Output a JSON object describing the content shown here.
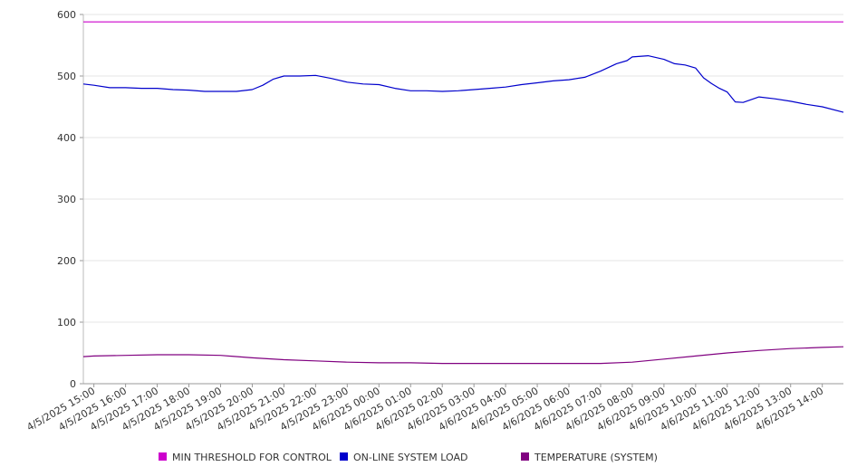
{
  "chart_data": {
    "type": "line",
    "title": "",
    "xlabel": "",
    "ylabel": "",
    "ylim": [
      0,
      600
    ],
    "y_ticks": [
      0,
      100,
      200,
      300,
      400,
      500,
      600
    ],
    "x_start": "4/5/2025 14:40",
    "x_end": "4/6/2025 14:40",
    "x_tick_labels": [
      "4/5/2025 15:00",
      "4/5/2025 16:00",
      "4/5/2025 17:00",
      "4/5/2025 18:00",
      "4/5/2025 19:00",
      "4/5/2025 20:00",
      "4/5/2025 21:00",
      "4/5/2025 22:00",
      "4/5/2025 23:00",
      "4/6/2025 00:00",
      "4/6/2025 01:00",
      "4/6/2025 02:00",
      "4/6/2025 03:00",
      "4/6/2025 04:00",
      "4/6/2025 05:00",
      "4/6/2025 06:00",
      "4/6/2025 07:00",
      "4/6/2025 08:00",
      "4/6/2025 09:00",
      "4/6/2025 10:00",
      "4/6/2025 11:00",
      "4/6/2025 12:00",
      "4/6/2025 13:00",
      "4/6/2025 14:00"
    ],
    "grid": true,
    "legend_position": "bottom",
    "series": [
      {
        "name": "MIN THRESHOLD FOR CONTROL",
        "color": "#cc00cc",
        "x": [
          "4/5/2025 14:40",
          "4/6/2025 14:40"
        ],
        "y": [
          588,
          588
        ]
      },
      {
        "name": "ON-LINE SYSTEM LOAD",
        "color": "#0000cc",
        "x": [
          "4/5/2025 14:40",
          "4/5/2025 15:00",
          "4/5/2025 15:30",
          "4/5/2025 16:00",
          "4/5/2025 16:30",
          "4/5/2025 17:00",
          "4/5/2025 17:30",
          "4/5/2025 18:00",
          "4/5/2025 18:30",
          "4/5/2025 19:00",
          "4/5/2025 19:30",
          "4/5/2025 20:00",
          "4/5/2025 20:20",
          "4/5/2025 20:40",
          "4/5/2025 21:00",
          "4/5/2025 21:30",
          "4/5/2025 22:00",
          "4/5/2025 22:30",
          "4/5/2025 23:00",
          "4/5/2025 23:30",
          "4/6/2025 00:00",
          "4/6/2025 00:30",
          "4/6/2025 01:00",
          "4/6/2025 01:30",
          "4/6/2025 02:00",
          "4/6/2025 02:30",
          "4/6/2025 03:00",
          "4/6/2025 03:30",
          "4/6/2025 04:00",
          "4/6/2025 04:30",
          "4/6/2025 05:00",
          "4/6/2025 05:30",
          "4/6/2025 06:00",
          "4/6/2025 06:30",
          "4/6/2025 07:00",
          "4/6/2025 07:30",
          "4/6/2025 07:50",
          "4/6/2025 08:00",
          "4/6/2025 08:30",
          "4/6/2025 09:00",
          "4/6/2025 09:20",
          "4/6/2025 09:40",
          "4/6/2025 10:00",
          "4/6/2025 10:15",
          "4/6/2025 10:30",
          "4/6/2025 10:45",
          "4/6/2025 11:00",
          "4/6/2025 11:15",
          "4/6/2025 11:30",
          "4/6/2025 12:00",
          "4/6/2025 12:30",
          "4/6/2025 13:00",
          "4/6/2025 13:30",
          "4/6/2025 14:00",
          "4/6/2025 14:40"
        ],
        "y": [
          487,
          485,
          481,
          481,
          480,
          480,
          478,
          477,
          475,
          475,
          475,
          478,
          485,
          495,
          500,
          500,
          501,
          496,
          490,
          487,
          486,
          480,
          476,
          476,
          475,
          476,
          478,
          480,
          482,
          486,
          489,
          492,
          494,
          498,
          508,
          520,
          525,
          531,
          533,
          527,
          520,
          518,
          513,
          497,
          488,
          480,
          474,
          458,
          457,
          466,
          463,
          459,
          454,
          450,
          441
        ]
      },
      {
        "name": "TEMPERATURE (SYSTEM)",
        "color": "#800080",
        "x": [
          "4/5/2025 14:40",
          "4/5/2025 15:00",
          "4/5/2025 16:00",
          "4/5/2025 17:00",
          "4/5/2025 18:00",
          "4/5/2025 19:00",
          "4/5/2025 20:00",
          "4/5/2025 21:00",
          "4/5/2025 22:00",
          "4/5/2025 23:00",
          "4/6/2025 00:00",
          "4/6/2025 01:00",
          "4/6/2025 02:00",
          "4/6/2025 03:00",
          "4/6/2025 04:00",
          "4/6/2025 05:00",
          "4/6/2025 06:00",
          "4/6/2025 07:00",
          "4/6/2025 08:00",
          "4/6/2025 09:00",
          "4/6/2025 10:00",
          "4/6/2025 11:00",
          "4/6/2025 12:00",
          "4/6/2025 13:00",
          "4/6/2025 14:00",
          "4/6/2025 14:40"
        ],
        "y": [
          44,
          45,
          46,
          47,
          47,
          46,
          42,
          39,
          37,
          35,
          34,
          34,
          33,
          33,
          33,
          33,
          33,
          33,
          35,
          40,
          45,
          50,
          54,
          57,
          59,
          60
        ]
      }
    ]
  }
}
